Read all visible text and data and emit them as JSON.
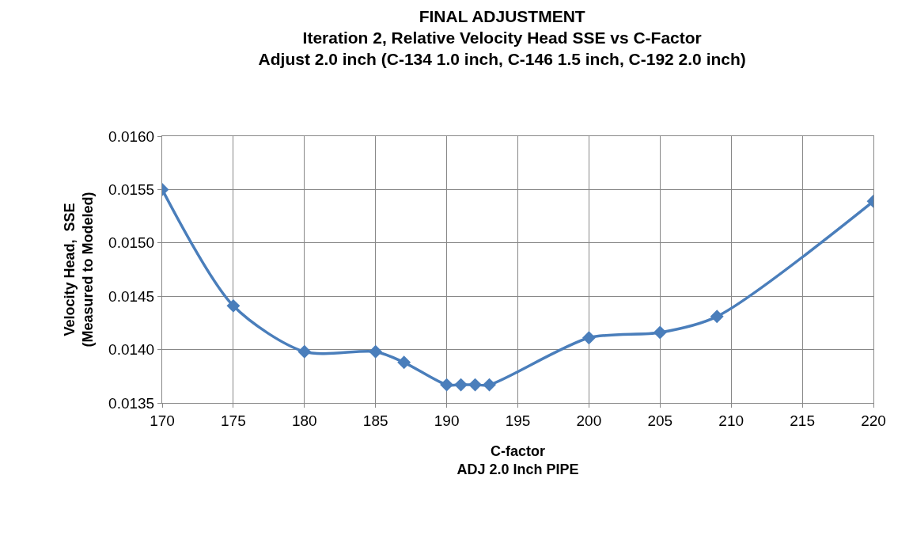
{
  "chart_data": {
    "type": "line",
    "title": "FINAL ADJUSTMENT\nIteration 2, Relative Velocity Head SSE vs C-Factor\nAdjust 2.0 inch (C-134 1.0 inch, C-146 1.5 inch, C-192 2.0 inch)",
    "xlabel": "C-factor\nADJ 2.0 Inch PIPE",
    "ylabel": "Velocity Head,  SSE\n(Measured to Modeled)",
    "x": [
      170,
      175,
      180,
      185,
      187,
      190,
      191,
      192,
      193,
      200,
      205,
      209,
      220
    ],
    "series": [
      {
        "color": "#4a7ebb",
        "values": [
          0.0155,
          0.01441,
          0.01398,
          0.01398,
          0.01388,
          0.01367,
          0.01367,
          0.01367,
          0.01367,
          0.01411,
          0.01416,
          0.01431,
          0.01539
        ]
      }
    ],
    "xlim": [
      170,
      220
    ],
    "xticks": [
      170,
      175,
      180,
      185,
      190,
      195,
      200,
      205,
      210,
      215,
      220
    ],
    "ylim": [
      0.0135,
      0.016
    ],
    "yticks": [
      {
        "value": 0.0135,
        "label": "0.0135"
      },
      {
        "value": 0.014,
        "label": "0.0140"
      },
      {
        "value": 0.0145,
        "label": "0.0145"
      },
      {
        "value": 0.015,
        "label": "0.0150"
      },
      {
        "value": 0.0155,
        "label": "0.0155"
      },
      {
        "value": 0.016,
        "label": "0.0160"
      }
    ],
    "grid": true,
    "marker": "diamond",
    "line_style": "solid"
  }
}
